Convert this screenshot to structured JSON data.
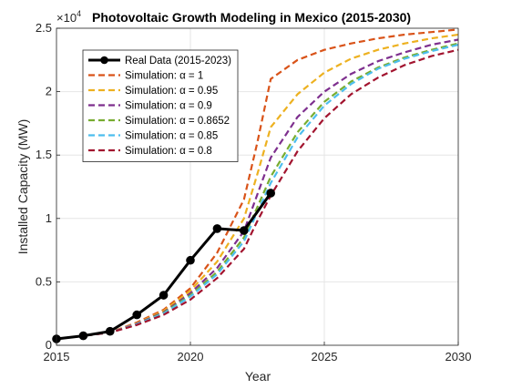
{
  "chart_data": {
    "type": "line",
    "title": "Photovoltaic Growth Modeling in Mexico (2015-2030)",
    "xlabel": "Year",
    "ylabel": "Installed Capacity (MW)",
    "xlim": [
      2015,
      2030
    ],
    "ylim": [
      0,
      25000
    ],
    "x_ticks": [
      "2015",
      "2020",
      "2025",
      "2030"
    ],
    "y_ticks": [
      "0",
      "0.5",
      "1",
      "1.5",
      "2",
      "2.5"
    ],
    "y_exponent_base": "×10",
    "y_exponent_power": "4",
    "grid": true,
    "legend_position": "top-left",
    "series": [
      {
        "name": "Real Data (2015-2023)",
        "color": "#000000",
        "style": "solid-marker",
        "x": [
          2015,
          2016,
          2017,
          2018,
          2019,
          2020,
          2021,
          2022,
          2023
        ],
        "y": [
          500,
          750,
          1100,
          2400,
          3950,
          6700,
          9200,
          9050,
          12000
        ]
      },
      {
        "name": "Simulation: α = 1",
        "color": "#D95319",
        "style": "dashed",
        "x": [
          2015,
          2016,
          2017,
          2018,
          2019,
          2020,
          2021,
          2022,
          2022.5,
          2023,
          2024,
          2025,
          2026,
          2027,
          2028,
          2029,
          2030
        ],
        "y": [
          500,
          750,
          1000,
          1800,
          2800,
          4500,
          7300,
          11500,
          16000,
          21000,
          22500,
          23300,
          23800,
          24200,
          24500,
          24700,
          24900
        ]
      },
      {
        "name": "Simulation: α = 0.95",
        "color": "#EDB120",
        "style": "dashed",
        "x": [
          2015,
          2016,
          2017,
          2018,
          2019,
          2020,
          2021,
          2022,
          2022.5,
          2023,
          2024,
          2025,
          2026,
          2027,
          2028,
          2029,
          2030
        ],
        "y": [
          500,
          750,
          1000,
          1750,
          2700,
          4300,
          6600,
          10000,
          13500,
          17200,
          19800,
          21500,
          22600,
          23300,
          23800,
          24200,
          24500
        ]
      },
      {
        "name": "Simulation: α = 0.9",
        "color": "#7E2F8E",
        "style": "dashed",
        "x": [
          2015,
          2016,
          2017,
          2018,
          2019,
          2020,
          2021,
          2022,
          2022.5,
          2023,
          2024,
          2025,
          2026,
          2027,
          2028,
          2029,
          2030
        ],
        "y": [
          500,
          750,
          1000,
          1700,
          2600,
          4100,
          6100,
          9000,
          11900,
          14800,
          18000,
          20000,
          21400,
          22400,
          23100,
          23700,
          24100
        ]
      },
      {
        "name": "Simulation: α = 0.8652",
        "color": "#77AC30",
        "style": "dashed",
        "x": [
          2015,
          2016,
          2017,
          2018,
          2019,
          2020,
          2021,
          2022,
          2022.5,
          2023,
          2024,
          2025,
          2026,
          2027,
          2028,
          2029,
          2030
        ],
        "y": [
          500,
          750,
          1000,
          1650,
          2550,
          3950,
          5800,
          8500,
          10900,
          13300,
          16800,
          19200,
          20800,
          21900,
          22700,
          23300,
          23800
        ]
      },
      {
        "name": "Simulation: α = 0.85",
        "color": "#4DBEEE",
        "style": "dashed",
        "x": [
          2015,
          2016,
          2017,
          2018,
          2019,
          2020,
          2021,
          2022,
          2022.5,
          2023,
          2024,
          2025,
          2026,
          2027,
          2028,
          2029,
          2030
        ],
        "y": [
          500,
          750,
          1000,
          1650,
          2500,
          3850,
          5600,
          8200,
          10500,
          12800,
          16400,
          18900,
          20600,
          21800,
          22600,
          23200,
          23700
        ]
      },
      {
        "name": "Simulation: α = 0.8",
        "color": "#A2142F",
        "style": "dashed",
        "x": [
          2015,
          2016,
          2017,
          2018,
          2019,
          2020,
          2021,
          2022,
          2022.5,
          2023,
          2024,
          2025,
          2026,
          2027,
          2028,
          2029,
          2030
        ],
        "y": [
          500,
          750,
          1000,
          1600,
          2400,
          3600,
          5300,
          7600,
          9800,
          11800,
          15300,
          17900,
          19800,
          21100,
          22100,
          22800,
          23300
        ]
      }
    ]
  }
}
